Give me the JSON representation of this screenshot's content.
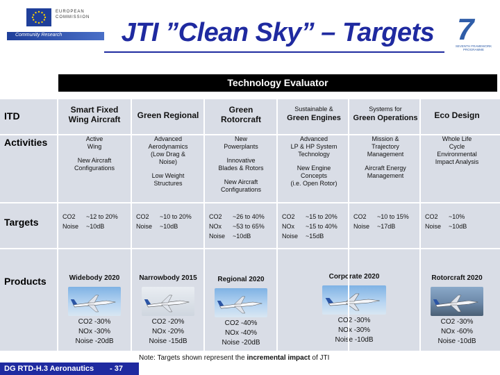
{
  "header": {
    "eu_line1": "EUROPEAN",
    "eu_line2": "COMMISSION",
    "eu_band": "Community Research",
    "title": "JTI ”Clean Sky” – Targets",
    "fp7_line": "SEVENTH FRAMEWORK PROGRAMME"
  },
  "evaluator": "Technology Evaluator",
  "rows": {
    "itd": "ITD",
    "activities": "Activities",
    "targets": "Targets",
    "products": "Products"
  },
  "columns": [
    {
      "head1": "Smart Fixed",
      "head2": "Wing Aircraft",
      "activities": [
        "Active",
        "Wing",
        "",
        "New Aircraft",
        "Configurations"
      ],
      "targets": [
        [
          "CO2",
          "~12 to 20%"
        ],
        [
          "Noise",
          "~10dB"
        ]
      ],
      "product": "Widebody 2020",
      "product_vals": [
        "CO2 -30%",
        "NOx -30%",
        "Noise -20dB"
      ]
    },
    {
      "head1": "Green Regional",
      "head2": "",
      "activities": [
        "Advanced",
        "Aerodynamics",
        "(Low Drag &",
        "Noise)",
        "",
        "Low Weight",
        "Structures"
      ],
      "targets": [
        [
          "CO2",
          "~10 to 20%"
        ],
        [
          "Noise",
          "~10dB"
        ]
      ],
      "product": "Narrowbody 2015",
      "product_vals": [
        "CO2 -20%",
        "NOx -20%",
        "Noise -15dB"
      ]
    },
    {
      "head1": "Green",
      "head2": "Rotorcraft",
      "activities": [
        "New",
        "Powerplants",
        "",
        "Innovative",
        "Blades & Rotors",
        "",
        "New Aircraft",
        "Configurations"
      ],
      "targets": [
        [
          "CO2",
          "~26 to 40%"
        ],
        [
          "NOx",
          "~53 to 65%"
        ],
        [
          "Noise",
          "~10dB"
        ]
      ],
      "product": "Regional 2020",
      "product_vals": [
        "CO2 -40%",
        "NOx -40%",
        "Noise -20dB"
      ]
    },
    {
      "head1": "Sustainable &",
      "head2": "Green Engines",
      "activities": [
        "Advanced",
        "LP & HP System",
        "Technology",
        "",
        "New Engine",
        "Concepts",
        "(i.e. Open Rotor)"
      ],
      "targets": [
        [
          "CO2",
          "~15 to 20%"
        ],
        [
          "NOx",
          "~15 to 40%"
        ],
        [
          "Noise",
          "~15dB"
        ]
      ],
      "product": "Corporate 2020",
      "product_vals": [
        "CO2 -30%",
        "NOx -30%",
        "Noise -10dB"
      ]
    },
    {
      "head1": "Systems for",
      "head2": "Green Operations",
      "activities": [
        "Mission &",
        "Trajectory",
        "Management",
        "",
        "Aircraft Energy",
        "Management"
      ],
      "targets": [
        [
          "CO2",
          "~10 to 15%"
        ],
        [
          "Noise",
          "~17dB"
        ]
      ],
      "product": "",
      "product_vals": []
    },
    {
      "head1": "Eco Design",
      "head2": "",
      "activities": [
        "Whole Life",
        "Cycle",
        "Environmental",
        "Impact Analysis"
      ],
      "targets": [
        [
          "CO2",
          "~10%"
        ],
        [
          "Noise",
          "~10dB"
        ]
      ],
      "product": "Rotorcraft 2020",
      "product_vals": [
        "CO2 -30%",
        "NOx -60%",
        "Noise -10dB"
      ]
    }
  ],
  "note_prefix": "Note: Targets shown represent the ",
  "note_bold": "incremental impact",
  "note_suffix": " of JTI",
  "footer": {
    "label": "DG RTD-H.3 Aeronautics",
    "page": "- 37"
  },
  "colors": {
    "title": "#1f2aa0",
    "row_bg": "#d9dde6",
    "footer": "#1f2aa0"
  }
}
